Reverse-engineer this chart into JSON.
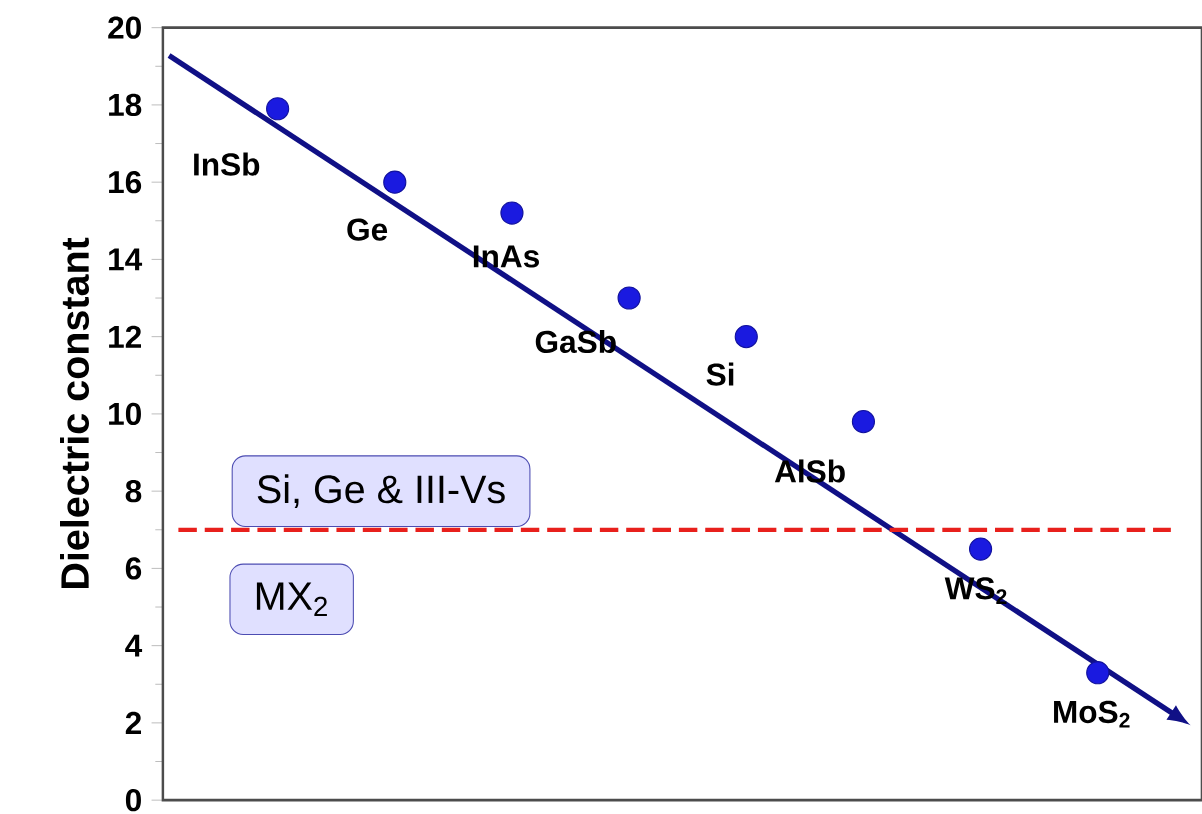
{
  "chart_data": {
    "type": "scatter",
    "ylabel": "Dielectric constant",
    "categories": [
      null,
      null,
      null,
      null,
      null,
      null,
      null,
      null
    ],
    "ylim": [
      0,
      20
    ],
    "yticks": [
      0,
      2,
      4,
      6,
      8,
      10,
      12,
      14,
      16,
      18,
      20
    ],
    "grid": false,
    "marker": "circle",
    "series": [
      {
        "color": "#1a1ae0",
        "values": [
          17.9,
          16.0,
          15.2,
          13.0,
          12.0,
          9.8,
          6.5,
          3.3
        ]
      }
    ],
    "ref_lines": [
      {
        "axis": "y",
        "value": 7,
        "color": "#e8201c",
        "line_style": "dashed"
      }
    ],
    "annotations": [
      "InSb",
      "Ge",
      "InAs",
      "GaSb",
      "Si",
      "AlSb",
      "WS$_{2}$",
      "MoS$_{2}$",
      "Si, Ge & III-Vs",
      "MX$_{2}$"
    ]
  }
}
